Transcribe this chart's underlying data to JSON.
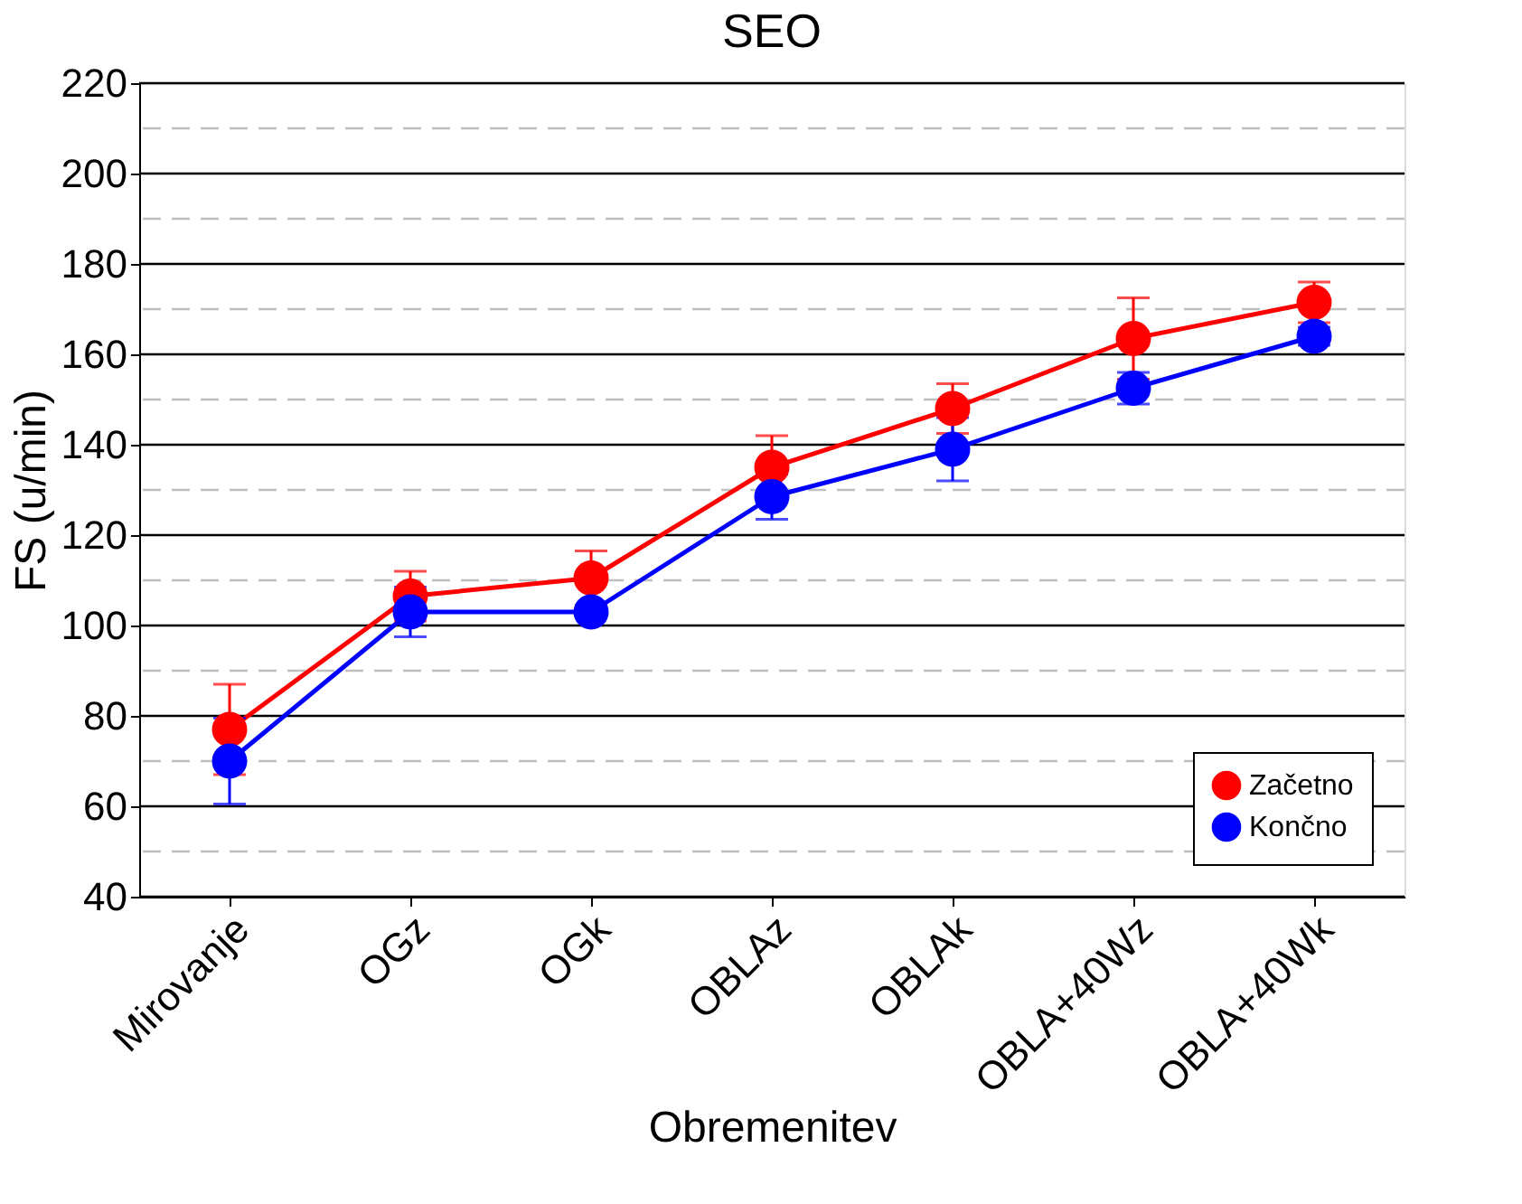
{
  "chart_data": {
    "type": "line",
    "title": "SEO",
    "xlabel": "Obremenitev",
    "ylabel": "FS (u/min)",
    "categories": [
      "Mirovanje",
      "OGz",
      "OGk",
      "OBLAz",
      "OBLAk",
      "OBLA+40Wz",
      "OBLA+40Wk"
    ],
    "series": [
      {
        "name": "Začetno",
        "color": "#ff0000",
        "values": [
          77,
          106.5,
          110.5,
          135,
          148,
          163.5,
          171.5
        ],
        "errors": [
          10,
          5.5,
          6,
          7,
          5.5,
          9,
          4.5
        ]
      },
      {
        "name": "Končno",
        "color": "#0000ff",
        "values": [
          70,
          103,
          103,
          128.5,
          139,
          152.5,
          164
        ],
        "errors": [
          9.5,
          5.5,
          null,
          5,
          7,
          3.5,
          2
        ]
      }
    ],
    "ylim": [
      40,
      220
    ],
    "yticks": [
      40,
      {
        "value": 50,
        "label": null
      },
      60,
      {
        "value": 70,
        "label": null
      },
      80,
      {
        "value": 90,
        "label": null
      },
      100,
      {
        "value": 110,
        "label": null
      },
      120,
      {
        "value": 130,
        "label": null
      },
      140,
      {
        "value": 150,
        "label": null
      },
      160,
      {
        "value": 170,
        "label": null
      },
      180,
      {
        "value": 190,
        "label": null
      },
      200,
      {
        "value": 210,
        "label": null
      },
      220
    ],
    "grid": "y",
    "legend": "bottom right",
    "marker": "circle",
    "line_style": "solid"
  }
}
